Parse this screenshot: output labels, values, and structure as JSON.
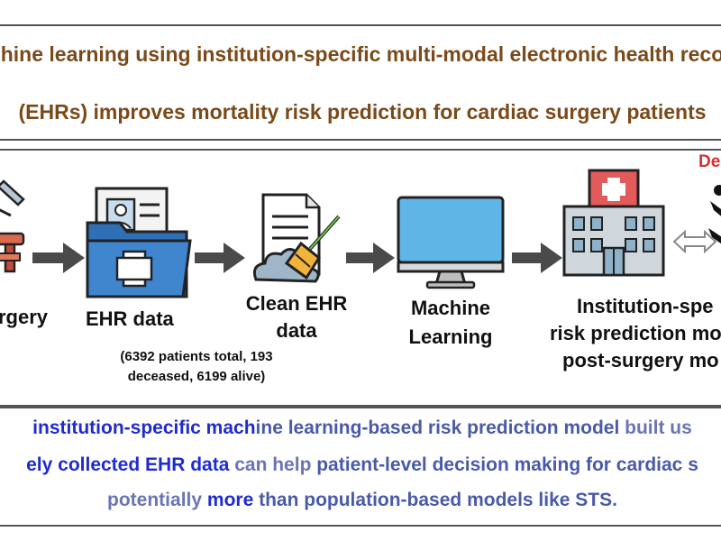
{
  "title": {
    "line1": "hine learning using institution-specific multi-modal electronic health reco",
    "line2": "(EHRs) improves mortality risk prediction for cardiac surgery patients"
  },
  "flow": {
    "surgery": {
      "label": "rgery"
    },
    "ehr": {
      "label": "EHR data",
      "note_line1": "(6392 patients total, 193",
      "note_line2": "deceased, 6199 alive)"
    },
    "clean": {
      "label_line1": "Clean EHR",
      "label_line2": "data"
    },
    "ml": {
      "label_line1": "Machine",
      "label_line2": "Learning"
    },
    "model": {
      "label_line1": "Institution-spe",
      "label_line2": "risk prediction mo",
      "label_line3": "post-surgery mo"
    },
    "decision": {
      "label": "De"
    }
  },
  "summary": {
    "l1_a": " institution-specific mach",
    "l1_b": "ine learning-based risk prediction model",
    "l1_c": " built us",
    "l2_a": "ely collected EHR data",
    "l2_b": " can help ",
    "l2_c": "patient-level decision making for cardiac s",
    "l3_a": "potentially ",
    "l3_b": "more",
    "l3_c": " than population-based models like STS."
  },
  "colors": {
    "title": "#7a4a1a",
    "summary_highlight": "#1f2bd0",
    "summary_text": "#4a5aa8",
    "decision": "#d93030",
    "arrow": "#4a4a4a",
    "icon_blue": "#2e6fb5",
    "icon_red": "#e05a5a"
  }
}
